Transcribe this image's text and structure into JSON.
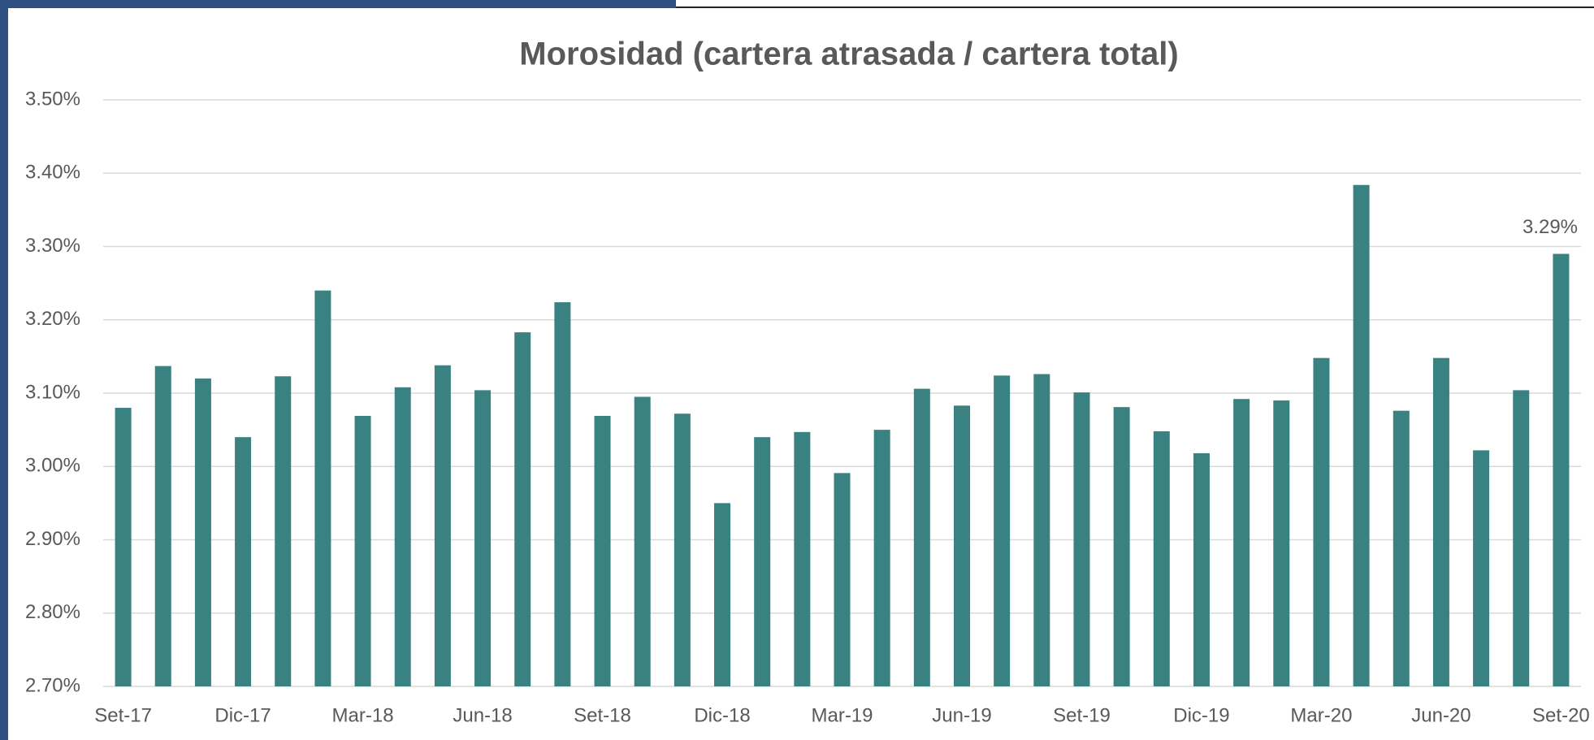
{
  "chart_data": {
    "type": "bar",
    "title": "Morosidad (cartera atrasada / cartera total)",
    "categories": [
      "Set-17",
      null,
      null,
      "Dic-17",
      null,
      null,
      "Mar-18",
      null,
      null,
      "Jun-18",
      null,
      null,
      "Set-18",
      null,
      null,
      "Dic-18",
      null,
      null,
      "Mar-19",
      null,
      null,
      "Jun-19",
      null,
      null,
      "Set-19",
      null,
      null,
      "Dic-19",
      null,
      null,
      "Mar-20",
      null,
      null,
      "Jun-20",
      null,
      null,
      "Set-20"
    ],
    "values": [
      3.08,
      3.137,
      3.12,
      3.04,
      3.123,
      3.24,
      3.069,
      3.108,
      3.138,
      3.104,
      3.183,
      3.224,
      3.069,
      3.095,
      3.072,
      2.95,
      3.04,
      3.047,
      2.991,
      3.05,
      3.106,
      3.083,
      3.124,
      3.126,
      3.101,
      3.081,
      3.048,
      3.018,
      3.092,
      3.09,
      3.148,
      3.384,
      3.076,
      3.148,
      3.022,
      3.104,
      3.29
    ],
    "value_labels": [
      null,
      null,
      null,
      null,
      null,
      null,
      null,
      null,
      null,
      null,
      null,
      null,
      null,
      null,
      null,
      null,
      null,
      null,
      null,
      null,
      null,
      null,
      null,
      null,
      null,
      null,
      null,
      null,
      null,
      null,
      null,
      null,
      null,
      null,
      null,
      null,
      "3.29%"
    ],
    "color": "#3a8282",
    "ylim": [
      2.7,
      3.5
    ],
    "yticks": [
      {
        "value": 2.7,
        "label": "2.70%"
      },
      {
        "value": 2.8,
        "label": "2.80%"
      },
      {
        "value": 2.9,
        "label": "2.90%"
      },
      {
        "value": 3.0,
        "label": "3.00%"
      },
      {
        "value": 3.1,
        "label": "3.10%"
      },
      {
        "value": 3.2,
        "label": "3.20%"
      },
      {
        "value": 3.3,
        "label": "3.30%"
      },
      {
        "value": 3.4,
        "label": "3.40%"
      },
      {
        "value": 3.5,
        "label": "3.50%"
      }
    ],
    "grid": true
  }
}
